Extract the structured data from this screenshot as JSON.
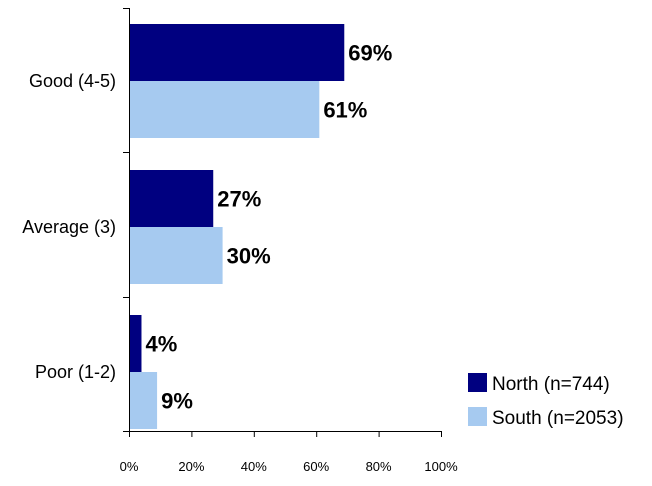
{
  "chart_data": {
    "type": "bar",
    "orientation": "horizontal",
    "categories": [
      "Good (4-5)",
      "Average (3)",
      "Poor (1-2)"
    ],
    "series": [
      {
        "name": "North (n=744)",
        "color": "#000080",
        "values": [
          69,
          27,
          4
        ],
        "labels": [
          "69%",
          "27%",
          "4%"
        ]
      },
      {
        "name": "South (n=2053)",
        "color": "#a6caf0",
        "values": [
          61,
          30,
          9
        ],
        "labels": [
          "61%",
          "30%",
          "9%"
        ]
      }
    ],
    "xlim": [
      0,
      100
    ],
    "x_ticks": [
      0,
      20,
      40,
      60,
      80,
      100
    ],
    "x_tick_labels": [
      "0%",
      "20%",
      "40%",
      "60%",
      "80%",
      "100%"
    ],
    "grid": false,
    "legend_position": "bottom-right",
    "title": "",
    "xlabel": "",
    "ylabel": ""
  }
}
